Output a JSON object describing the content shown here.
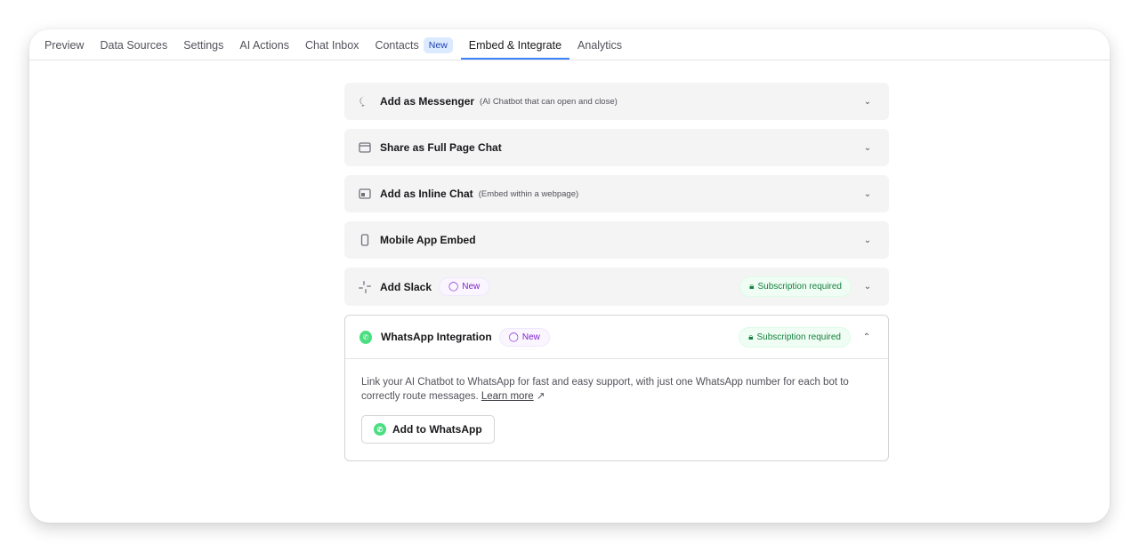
{
  "tabs": [
    {
      "label": "Preview"
    },
    {
      "label": "Data Sources"
    },
    {
      "label": "Settings"
    },
    {
      "label": "AI Actions"
    },
    {
      "label": "Chat Inbox"
    },
    {
      "label": "Contacts",
      "badge": "New"
    },
    {
      "label": "Embed & Integrate",
      "active": true
    },
    {
      "label": "Analytics"
    }
  ],
  "sections": [
    {
      "title": "Add as Messenger",
      "sub": "(AI Chatbot that can open and close)",
      "icon": "chat-bubble-icon"
    },
    {
      "title": "Share as Full Page Chat",
      "icon": "browser-window-icon"
    },
    {
      "title": "Add as Inline Chat",
      "sub": "(Embed within a webpage)",
      "icon": "inline-layout-icon"
    },
    {
      "title": "Mobile App Embed",
      "icon": "mobile-phone-icon"
    },
    {
      "title": "Add Slack",
      "badge": "New",
      "lock": "Subscription required",
      "icon": "slack-icon"
    }
  ],
  "whatsapp": {
    "title": "WhatsApp Integration",
    "badge": "New",
    "lock": "Subscription required",
    "desc": "Link your AI Chatbot to WhatsApp for fast and easy support, with just one WhatsApp number for each bot to correctly route messages.",
    "learn_more": "Learn more",
    "button": "Add to WhatsApp",
    "accent": "#4ade80"
  }
}
